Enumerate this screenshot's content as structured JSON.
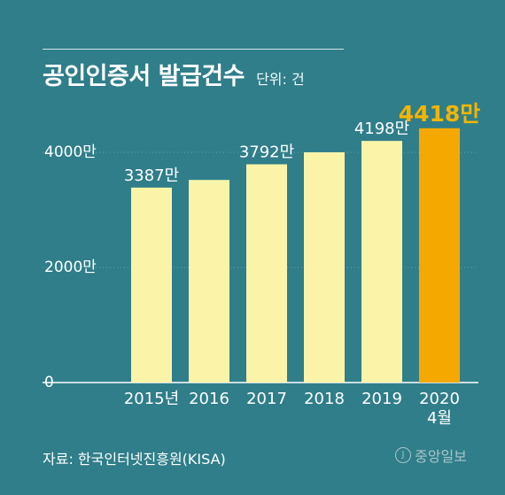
{
  "title": "공인인증서 발급건수",
  "unit_label": "단위: 건",
  "source": "자료: 한국인터넷진흥원(KISA)",
  "publisher": "중앙일보",
  "colors": {
    "background": "#2f7e8a",
    "bar": "#fbf4a8",
    "highlight_bar": "#f5a800",
    "highlight_label": "#f5b400",
    "text": "#ffffff"
  },
  "chart_data": {
    "type": "bar",
    "title": "공인인증서 발급건수",
    "unit": "단위: 건",
    "categories": [
      "2015년",
      "2016",
      "2017",
      "2018",
      "2019",
      "2020 4월"
    ],
    "values": [
      3387,
      3520,
      3792,
      4000,
      4198,
      4418
    ],
    "data_labels": [
      "3387만",
      "",
      "3792만",
      "",
      "4198만",
      "4418만"
    ],
    "highlight_index": 5,
    "ylim": [
      0,
      4500
    ],
    "y_ticks": [
      {
        "value": 0,
        "label": "0"
      },
      {
        "value": 2000,
        "label": "2000만"
      },
      {
        "value": 4000,
        "label": "4000만"
      }
    ],
    "grid": true
  }
}
